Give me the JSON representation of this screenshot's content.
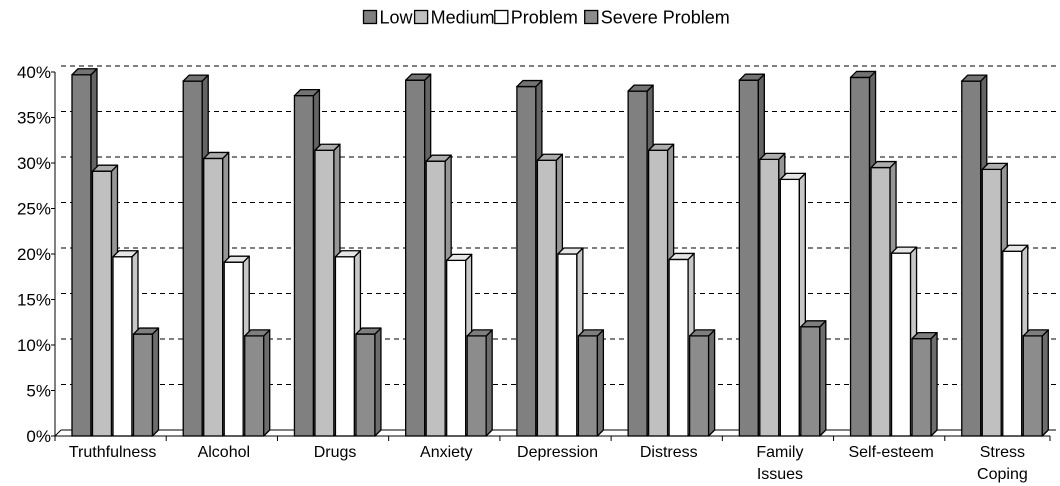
{
  "chart_data": {
    "type": "bar",
    "style": "3d-clustered",
    "categories": [
      "Truthfulness",
      "Alcohol",
      "Drugs",
      "Anxiety",
      "Depression",
      "Distress",
      "Family Issues",
      "Self-esteem",
      "Stress Coping"
    ],
    "series": [
      {
        "name": "Low",
        "color": "#808080",
        "values": [
          39.7,
          39.0,
          37.4,
          39.1,
          38.4,
          37.9,
          39.1,
          39.4,
          39.0
        ]
      },
      {
        "name": "Medium",
        "color": "#c0c0c0",
        "values": [
          29.1,
          30.5,
          31.4,
          30.2,
          30.3,
          31.4,
          30.4,
          29.5,
          29.3
        ]
      },
      {
        "name": "Problem",
        "color": "#ffffff",
        "values": [
          19.7,
          19.1,
          19.7,
          19.3,
          20.0,
          19.4,
          28.2,
          20.1,
          20.3
        ]
      },
      {
        "name": "Severe Problem",
        "color": "#8c8c8c",
        "values": [
          11.2,
          11.0,
          11.2,
          11.0,
          11.0,
          11.0,
          12.0,
          10.7,
          11.0
        ]
      }
    ],
    "ylim": [
      0,
      40
    ],
    "yticks": [
      0,
      5,
      10,
      15,
      20,
      25,
      30,
      35,
      40
    ],
    "ytick_labels": [
      "0%",
      "5%",
      "10%",
      "15%",
      "20%",
      "25%",
      "30%",
      "35%",
      "40%"
    ],
    "title": "",
    "xlabel": "",
    "ylabel": "",
    "grid": true,
    "legend_position": "top-center"
  }
}
